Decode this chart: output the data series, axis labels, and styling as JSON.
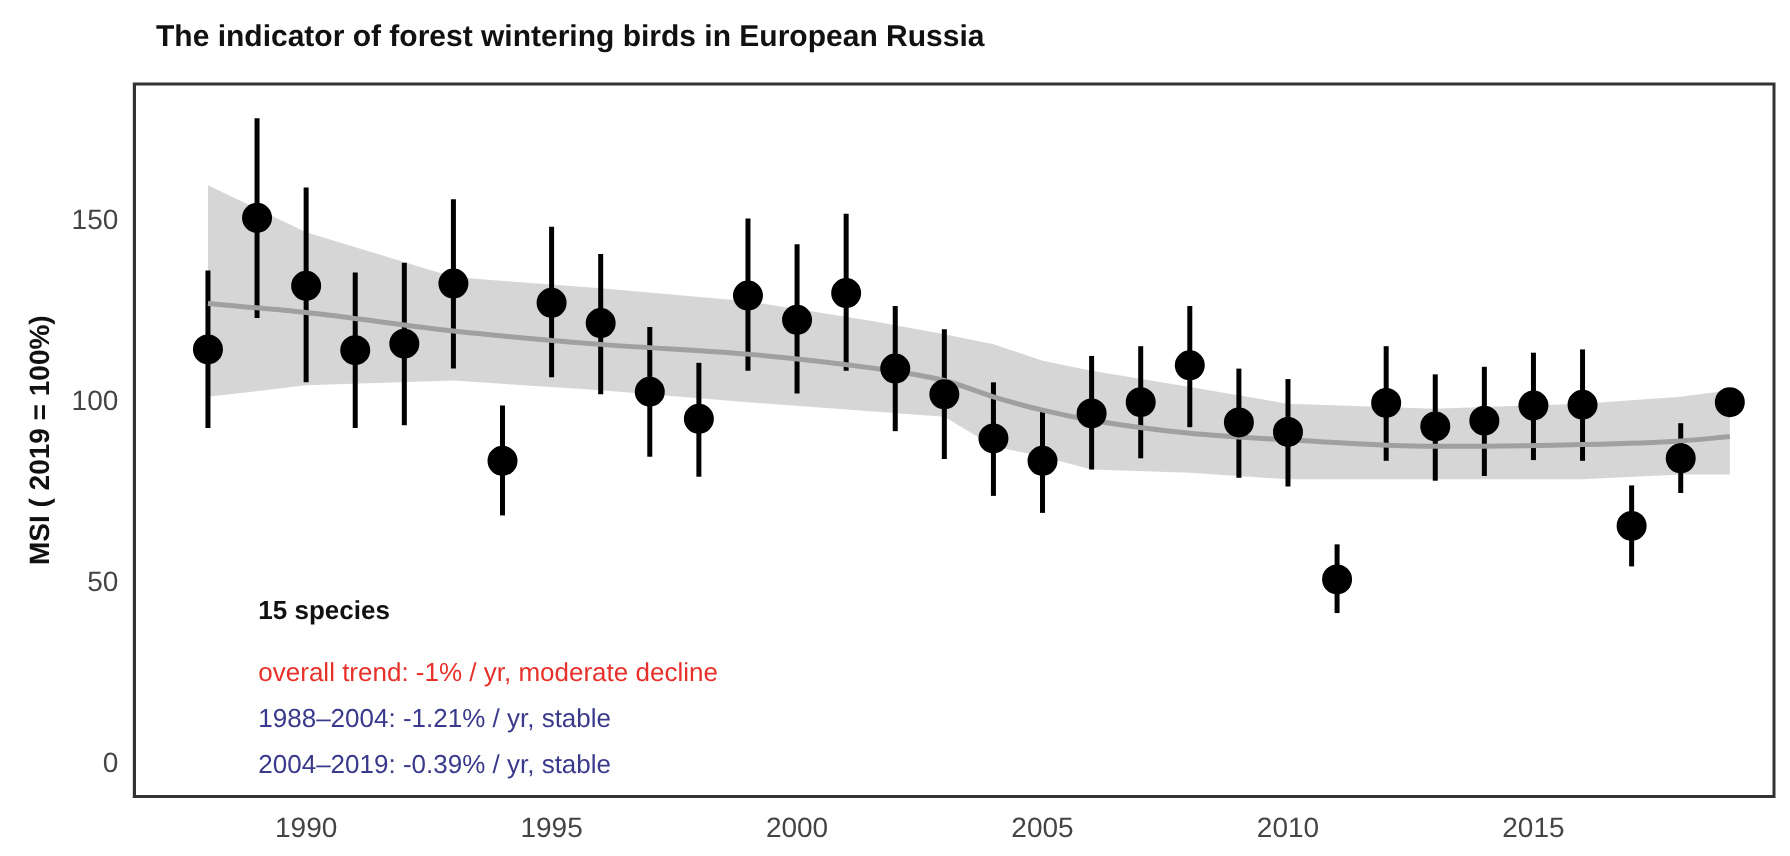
{
  "chart_data": {
    "type": "scatter",
    "title": "The indicator of forest wintering birds in European Russia",
    "ylabel": "MSI ( 2019 = 100%)",
    "xlim": [
      1986.5,
      2019.9
    ],
    "xticks": [
      1990,
      1995,
      2000,
      2005,
      2010,
      2015
    ],
    "ylim": [
      -9,
      188
    ],
    "yticks": [
      0,
      50,
      100,
      150
    ],
    "grid": false,
    "legend": false,
    "series": [
      {
        "color": "#000000",
        "marker": "circle",
        "x": [
          1988,
          1989,
          1990,
          1991,
          1992,
          1993,
          1994,
          1995,
          1996,
          1997,
          1998,
          1999,
          2000,
          2001,
          2002,
          2003,
          2004,
          2005,
          2006,
          2007,
          2008,
          2009,
          2010,
          2011,
          2012,
          2013,
          2014,
          2015,
          2016,
          2017,
          2018,
          2019
        ],
        "values": [
          114.6,
          151,
          132.2,
          114.4,
          116.2,
          132.8,
          83.8,
          127.5,
          121.9,
          102.9,
          95.4,
          129.5,
          122.8,
          130.2,
          109.3,
          102.2,
          90,
          83.8,
          96.9,
          100,
          110.2,
          94.4,
          91.8,
          51,
          99.8,
          93.3,
          94.9,
          99.1,
          99.3,
          65.8,
          84.5,
          100
        ],
        "errors": [
          [
            92.9,
            136.4
          ],
          [
            123.3,
            178.5
          ],
          [
            105.5,
            159.4
          ],
          [
            92.9,
            135.9
          ],
          [
            93.6,
            138.6
          ],
          [
            109.3,
            156.1
          ],
          [
            68.7,
            99.1
          ],
          [
            106.9,
            148.5
          ],
          [
            102.2,
            141
          ],
          [
            84.9,
            120.8
          ],
          [
            79.4,
            110.9
          ],
          [
            108.7,
            150.8
          ],
          [
            102.4,
            143.7
          ],
          [
            108.7,
            152.1
          ],
          [
            92,
            126.6
          ],
          [
            84.3,
            120.2
          ],
          [
            74.1,
            105.5
          ],
          [
            69.4,
            98.2
          ],
          [
            81.4,
            112.8
          ],
          [
            84.5,
            115.5
          ],
          [
            93.1,
            126.6
          ],
          [
            79.1,
            109.3
          ],
          [
            76.7,
            106.4
          ],
          [
            41.7,
            60.7
          ],
          [
            83.8,
            115.5
          ],
          [
            78.3,
            107.7
          ],
          [
            79.6,
            109.8
          ],
          [
            84,
            113.7
          ],
          [
            83.8,
            114.6
          ],
          [
            54.6,
            77
          ],
          [
            74.9,
            94.2
          ],
          null
        ]
      },
      {
        "type": "line",
        "color": "#a0a0a0",
        "x": [
          1988,
          1990,
          1993,
          1996,
          1999,
          2001.5,
          2003,
          2004,
          2005,
          2006,
          2008,
          2010,
          2013,
          2016,
          2018,
          2019
        ],
        "values": [
          127.3,
          124.8,
          119.7,
          116,
          113.3,
          109.5,
          106,
          101.5,
          97.8,
          95,
          91.4,
          89.6,
          87.8,
          88.3,
          89.3,
          90.5
        ],
        "lower": [
          101.5,
          104.7,
          106,
          103.3,
          100,
          97.5,
          96,
          87.8,
          85,
          81.4,
          80.5,
          78.7,
          78.7,
          78.7,
          80,
          80
        ],
        "upper": [
          160,
          147,
          134.6,
          131.5,
          127.9,
          122.5,
          118.8,
          116,
          111.5,
          108.7,
          104.2,
          99.6,
          98.2,
          99.6,
          101.5,
          103.3
        ]
      }
    ],
    "annotations": [
      "15 species",
      "overall trend: -1% / yr, moderate decline",
      "1988–2004: -1.21% / yr, stable",
      "2004–2019: -0.39% / yr, stable"
    ]
  }
}
